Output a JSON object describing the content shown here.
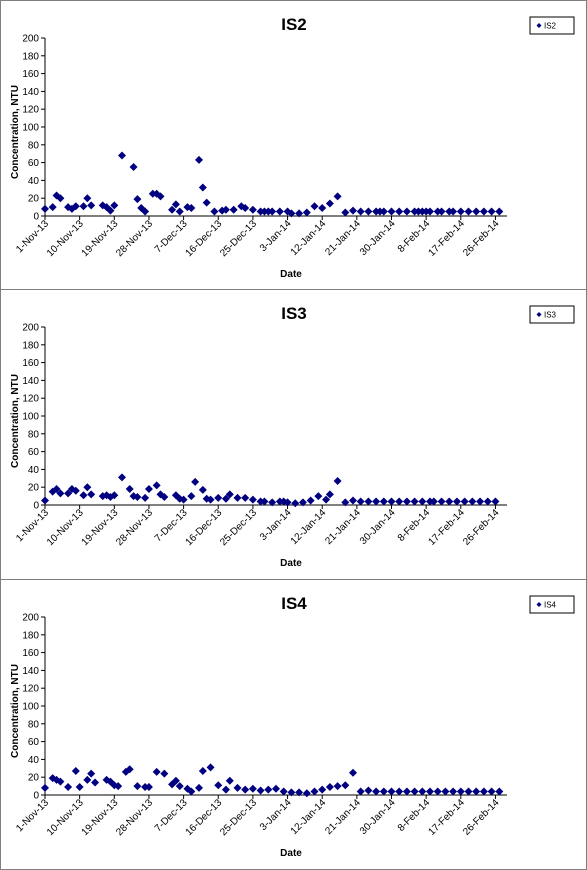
{
  "chart_data": [
    {
      "type": "scatter",
      "title": "IS2",
      "xlabel": "Date",
      "ylabel": "Concentration, NTU",
      "ylim": [
        0,
        200
      ],
      "yticks": [
        0,
        20,
        40,
        60,
        80,
        100,
        120,
        140,
        160,
        180,
        200
      ],
      "xlim": [
        "2013-11-01",
        "2014-03-01"
      ],
      "xtick_labels": [
        "1-Nov-13",
        "10-Nov-13",
        "19-Nov-13",
        "28-Nov-13",
        "7-Dec-13",
        "16-Dec-13",
        "25-Dec-13",
        "3-Jan-14",
        "12-Jan-14",
        "21-Jan-14",
        "30-Jan-14",
        "8-Feb-14",
        "17-Feb-14",
        "26-Feb-14"
      ],
      "xtick_dates": [
        "2013-11-01",
        "2013-11-10",
        "2013-11-19",
        "2013-11-28",
        "2013-12-07",
        "2013-12-16",
        "2013-12-25",
        "2014-01-03",
        "2014-01-12",
        "2014-01-21",
        "2014-01-30",
        "2014-02-08",
        "2014-02-17",
        "2014-02-26"
      ],
      "legend": "top-right",
      "series": [
        {
          "name": "IS2",
          "color": "#000080",
          "marker": "diamond",
          "x": [
            "2013-11-01",
            "2013-11-03",
            "2013-11-04",
            "2013-11-05",
            "2013-11-07",
            "2013-11-08",
            "2013-11-09",
            "2013-11-11",
            "2013-11-12",
            "2013-11-13",
            "2013-11-16",
            "2013-11-17",
            "2013-11-18",
            "2013-11-19",
            "2013-11-21",
            "2013-11-24",
            "2013-11-25",
            "2013-11-26",
            "2013-11-27",
            "2013-11-29",
            "2013-11-30",
            "2013-12-01",
            "2013-12-04",
            "2013-12-05",
            "2013-12-06",
            "2013-12-08",
            "2013-12-09",
            "2013-12-11",
            "2013-12-12",
            "2013-12-13",
            "2013-12-15",
            "2013-12-17",
            "2013-12-18",
            "2013-12-20",
            "2013-12-22",
            "2013-12-23",
            "2013-12-25",
            "2013-12-27",
            "2013-12-28",
            "2013-12-29",
            "2013-12-30",
            "2014-01-01",
            "2014-01-03",
            "2014-01-04",
            "2014-01-06",
            "2014-01-08",
            "2014-01-10",
            "2014-01-12",
            "2014-01-14",
            "2014-01-16",
            "2014-01-18",
            "2014-01-20",
            "2014-01-22",
            "2014-01-24",
            "2014-01-26",
            "2014-01-27",
            "2014-01-28",
            "2014-01-30",
            "2014-02-01",
            "2014-02-03",
            "2014-02-05",
            "2014-02-06",
            "2014-02-07",
            "2014-02-08",
            "2014-02-09",
            "2014-02-11",
            "2014-02-12",
            "2014-02-14",
            "2014-02-15",
            "2014-02-17",
            "2014-02-19",
            "2014-02-21",
            "2014-02-23",
            "2014-02-25",
            "2014-02-27"
          ],
          "y": [
            8,
            10,
            23,
            20,
            10,
            8,
            11,
            11,
            20,
            12,
            12,
            10,
            6,
            12,
            68,
            55,
            19,
            9,
            5,
            25,
            25,
            22,
            7,
            13,
            5,
            10,
            9,
            63,
            32,
            15,
            5,
            6,
            7,
            7,
            11,
            9,
            7,
            5,
            5,
            5,
            5,
            5,
            5,
            3,
            3,
            4,
            11,
            9,
            14,
            22,
            4,
            6,
            5,
            5,
            5,
            5,
            5,
            5,
            5,
            5,
            5,
            5,
            5,
            5,
            5,
            5,
            5,
            5,
            5,
            5,
            5,
            5,
            5,
            5,
            5
          ]
        }
      ]
    },
    {
      "type": "scatter",
      "title": "IS3",
      "xlabel": "Date",
      "ylabel": "Concentration, NTU",
      "ylim": [
        0,
        200
      ],
      "yticks": [
        0,
        20,
        40,
        60,
        80,
        100,
        120,
        140,
        160,
        180,
        200
      ],
      "xlim": [
        "2013-11-01",
        "2014-03-01"
      ],
      "xtick_labels": [
        "1-Nov-13",
        "10-Nov-13",
        "19-Nov-13",
        "28-Nov-13",
        "7-Dec-13",
        "16-Dec-13",
        "25-Dec-13",
        "3-Jan-14",
        "12-Jan-14",
        "21-Jan-14",
        "30-Jan-14",
        "8-Feb-14",
        "17-Feb-14",
        "26-Feb-14"
      ],
      "xtick_dates": [
        "2013-11-01",
        "2013-11-10",
        "2013-11-19",
        "2013-11-28",
        "2013-12-07",
        "2013-12-16",
        "2013-12-25",
        "2014-01-03",
        "2014-01-12",
        "2014-01-21",
        "2014-01-30",
        "2014-02-08",
        "2014-02-17",
        "2014-02-26"
      ],
      "legend": "top-right",
      "series": [
        {
          "name": "IS3",
          "color": "#000080",
          "marker": "diamond",
          "x": [
            "2013-11-01",
            "2013-11-03",
            "2013-11-04",
            "2013-11-05",
            "2013-11-07",
            "2013-11-08",
            "2013-11-09",
            "2013-11-11",
            "2013-11-12",
            "2013-11-13",
            "2013-11-16",
            "2013-11-17",
            "2013-11-18",
            "2013-11-19",
            "2013-11-21",
            "2013-11-23",
            "2013-11-24",
            "2013-11-25",
            "2013-11-27",
            "2013-11-28",
            "2013-11-30",
            "2013-12-01",
            "2013-12-02",
            "2013-12-05",
            "2013-12-06",
            "2013-12-07",
            "2013-12-09",
            "2013-12-10",
            "2013-12-12",
            "2013-12-13",
            "2013-12-14",
            "2013-12-16",
            "2013-12-18",
            "2013-12-19",
            "2013-12-21",
            "2013-12-23",
            "2013-12-25",
            "2013-12-27",
            "2013-12-28",
            "2013-12-30",
            "2014-01-01",
            "2014-01-02",
            "2014-01-03",
            "2014-01-05",
            "2014-01-07",
            "2014-01-09",
            "2014-01-11",
            "2014-01-13",
            "2014-01-14",
            "2014-01-16",
            "2014-01-18",
            "2014-01-20",
            "2014-01-22",
            "2014-01-24",
            "2014-01-26",
            "2014-01-28",
            "2014-01-30",
            "2014-02-01",
            "2014-02-03",
            "2014-02-05",
            "2014-02-07",
            "2014-02-09",
            "2014-02-10",
            "2014-02-12",
            "2014-02-14",
            "2014-02-16",
            "2014-02-18",
            "2014-02-20",
            "2014-02-22",
            "2014-02-24",
            "2014-02-26"
          ],
          "y": [
            5,
            15,
            18,
            13,
            13,
            18,
            16,
            11,
            20,
            12,
            10,
            11,
            9,
            11,
            31,
            18,
            10,
            9,
            8,
            18,
            22,
            12,
            9,
            11,
            7,
            6,
            10,
            26,
            17,
            7,
            6,
            8,
            7,
            12,
            8,
            8,
            6,
            4,
            4,
            3,
            4,
            4,
            3,
            2,
            3,
            5,
            10,
            6,
            12,
            27,
            3,
            5,
            4,
            4,
            4,
            4,
            4,
            4,
            4,
            4,
            4,
            4,
            4,
            4,
            4,
            4,
            4,
            4,
            4,
            4,
            4
          ]
        }
      ]
    },
    {
      "type": "scatter",
      "title": "IS4",
      "xlabel": "Date",
      "ylabel": "Concentration, NTU",
      "ylim": [
        0,
        200
      ],
      "yticks": [
        0,
        20,
        40,
        60,
        80,
        100,
        120,
        140,
        160,
        180,
        200
      ],
      "xlim": [
        "2013-11-01",
        "2014-03-01"
      ],
      "xtick_labels": [
        "1-Nov-13",
        "10-Nov-13",
        "19-Nov-13",
        "28-Nov-13",
        "7-Dec-13",
        "16-Dec-13",
        "25-Dec-13",
        "3-Jan-14",
        "12-Jan-14",
        "21-Jan-14",
        "30-Jan-14",
        "8-Feb-14",
        "17-Feb-14",
        "26-Feb-14"
      ],
      "xtick_dates": [
        "2013-11-01",
        "2013-11-10",
        "2013-11-19",
        "2013-11-28",
        "2013-12-07",
        "2013-12-16",
        "2013-12-25",
        "2014-01-03",
        "2014-01-12",
        "2014-01-21",
        "2014-01-30",
        "2014-02-08",
        "2014-02-17",
        "2014-02-26"
      ],
      "legend": "top-right",
      "series": [
        {
          "name": "IS4",
          "color": "#000080",
          "marker": "diamond",
          "x": [
            "2013-11-01",
            "2013-11-03",
            "2013-11-04",
            "2013-11-05",
            "2013-11-07",
            "2013-11-09",
            "2013-11-10",
            "2013-11-12",
            "2013-11-13",
            "2013-11-14",
            "2013-11-17",
            "2013-11-18",
            "2013-11-19",
            "2013-11-20",
            "2013-11-22",
            "2013-11-23",
            "2013-11-25",
            "2013-11-27",
            "2013-11-28",
            "2013-11-30",
            "2013-12-02",
            "2013-12-04",
            "2013-12-05",
            "2013-12-06",
            "2013-12-08",
            "2013-12-09",
            "2013-12-11",
            "2013-12-12",
            "2013-12-14",
            "2013-12-16",
            "2013-12-18",
            "2013-12-19",
            "2013-12-21",
            "2013-12-23",
            "2013-12-25",
            "2013-12-27",
            "2013-12-29",
            "2013-12-31",
            "2014-01-02",
            "2014-01-04",
            "2014-01-06",
            "2014-01-08",
            "2014-01-10",
            "2014-01-12",
            "2014-01-14",
            "2014-01-16",
            "2014-01-18",
            "2014-01-20",
            "2014-01-22",
            "2014-01-24",
            "2014-01-26",
            "2014-01-28",
            "2014-01-30",
            "2014-02-01",
            "2014-02-03",
            "2014-02-05",
            "2014-02-07",
            "2014-02-09",
            "2014-02-11",
            "2014-02-13",
            "2014-02-15",
            "2014-02-17",
            "2014-02-19",
            "2014-02-21",
            "2014-02-23",
            "2014-02-25",
            "2014-02-27"
          ],
          "y": [
            8,
            19,
            17,
            15,
            9,
            27,
            9,
            17,
            24,
            14,
            17,
            15,
            11,
            10,
            26,
            29,
            10,
            9,
            9,
            26,
            24,
            12,
            16,
            10,
            7,
            4,
            8,
            27,
            31,
            11,
            6,
            16,
            8,
            6,
            7,
            5,
            6,
            7,
            4,
            3,
            3,
            2,
            4,
            6,
            9,
            10,
            11,
            25,
            4,
            5,
            4,
            4,
            4,
            4,
            4,
            4,
            4,
            4,
            4,
            4,
            4,
            4,
            4,
            4,
            4,
            4,
            4
          ]
        }
      ]
    }
  ]
}
